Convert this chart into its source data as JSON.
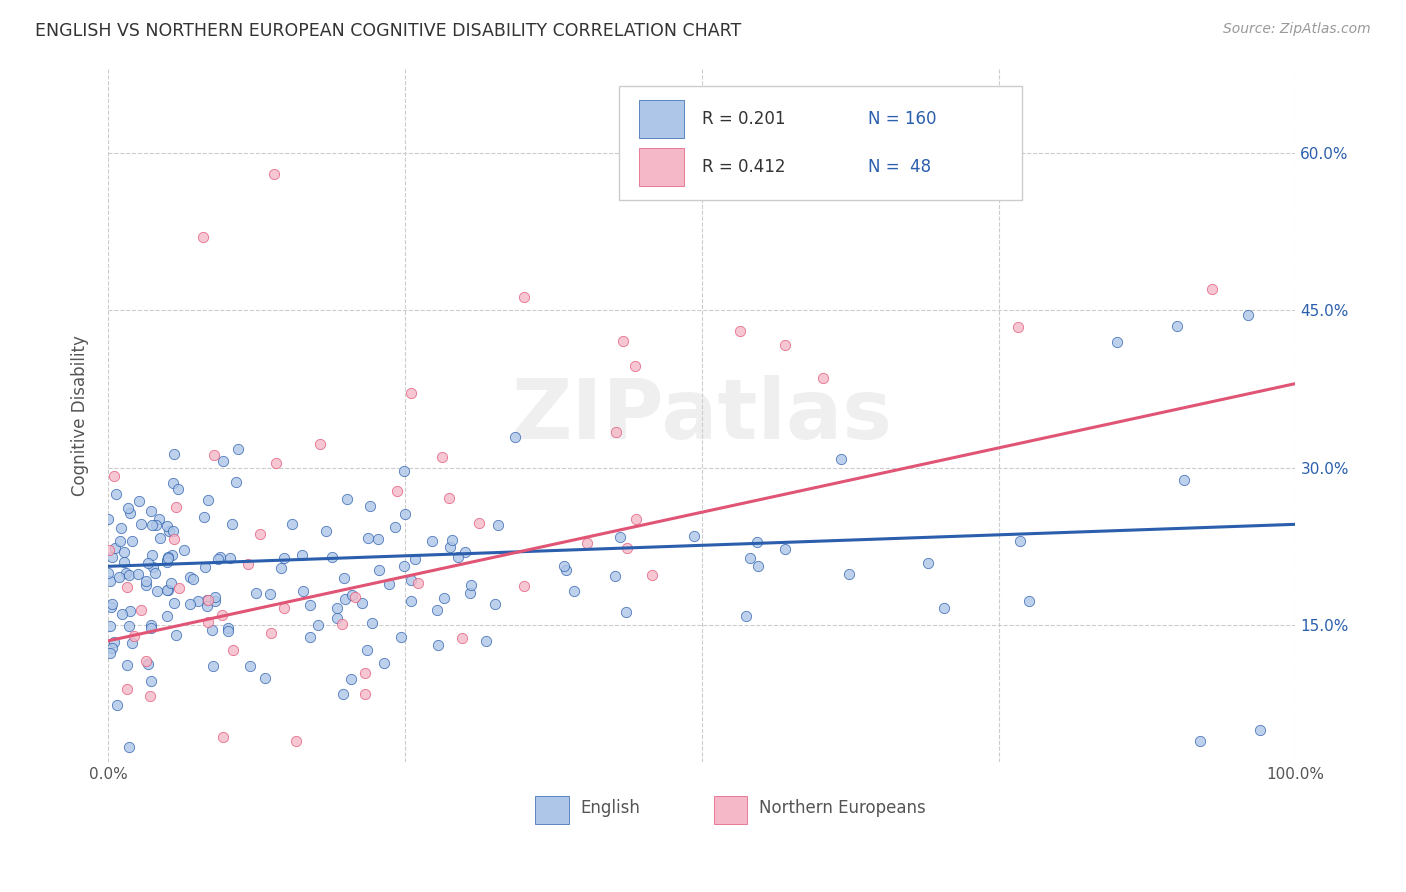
{
  "title": "ENGLISH VS NORTHERN EUROPEAN COGNITIVE DISABILITY CORRELATION CHART",
  "source": "Source: ZipAtlas.com",
  "ylabel": "Cognitive Disability",
  "watermark": "ZIPatlas",
  "english_color": "#aec6e8",
  "northern_color": "#f4b8c8",
  "english_line_color": "#2b5fad",
  "northern_line_color": "#e05575",
  "english_R": 0.201,
  "english_N": 160,
  "northern_R": 0.412,
  "northern_N": 48,
  "xlim": [
    0.0,
    1.0
  ],
  "ylim": [
    0.02,
    0.68
  ],
  "yticks": [
    0.15,
    0.3,
    0.45,
    0.6
  ],
  "ytick_labels": [
    "15.0%",
    "30.0%",
    "45.0%",
    "60.0%"
  ],
  "xticks": [
    0.0,
    0.25,
    0.5,
    0.75,
    1.0
  ],
  "xtick_labels": [
    "0.0%",
    "",
    "",
    "",
    "100.0%"
  ],
  "title_color": "#333333",
  "source_color": "#999999",
  "label_color": "#2b5fad",
  "background_color": "#ffffff",
  "grid_color": "#cccccc",
  "legend_text_color": "#2b5fad",
  "legend_label_color": "#333333"
}
